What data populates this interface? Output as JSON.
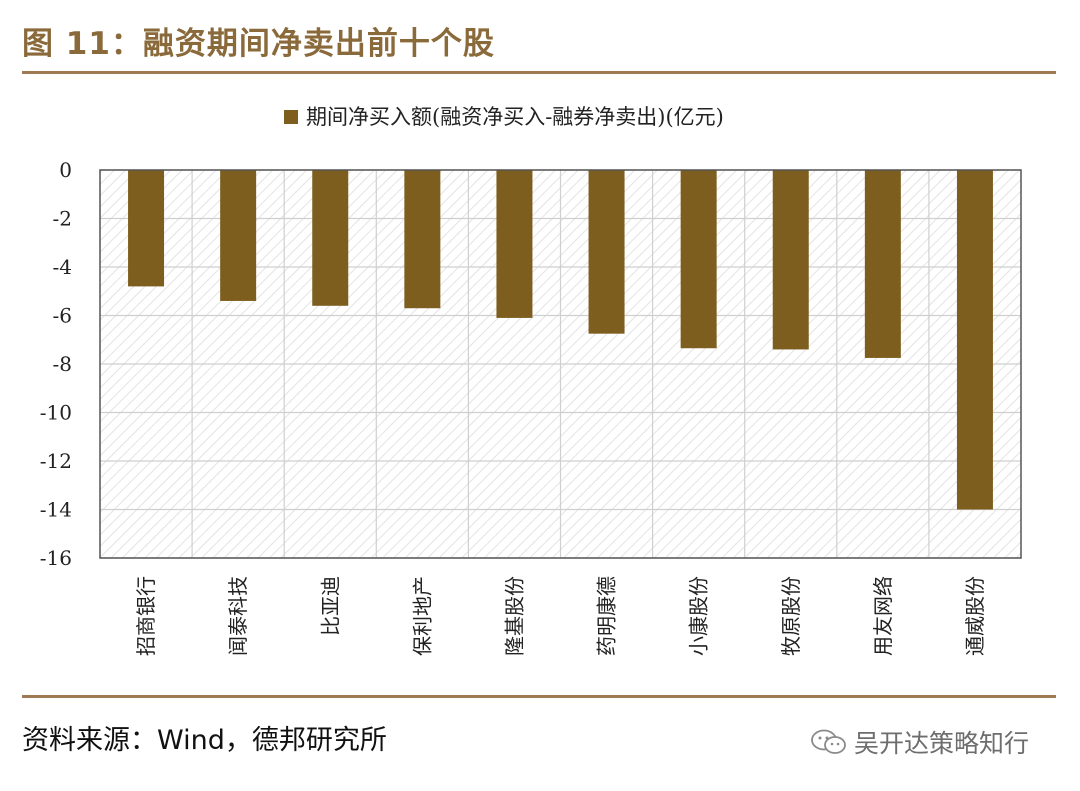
{
  "figure": {
    "title": "图 11：融资期间净卖出前十个股",
    "source": "资料来源：Wind，德邦研究所",
    "watermark": "吴开达策略知行"
  },
  "colors": {
    "bar": "#7d5e1e",
    "accent": "#a07a52",
    "title": "#8a6a3a"
  },
  "chart_data": {
    "type": "bar",
    "title": "",
    "legend": "期间净买入额(融资净买入-融券净卖出)(亿元)",
    "legend_position": "top",
    "xlabel": "",
    "ylabel": "",
    "categories": [
      "招商银行",
      "闻泰科技",
      "比亚迪",
      "保利地产",
      "隆基股份",
      "药明康德",
      "小康股份",
      "牧原股份",
      "用友网络",
      "通威股份"
    ],
    "values": [
      -4.8,
      -5.4,
      -5.6,
      -5.7,
      -6.1,
      -6.75,
      -7.35,
      -7.4,
      -7.75,
      -14.0
    ],
    "ylim": [
      -16,
      0
    ],
    "yticks": [
      "0",
      "-2",
      "-4",
      "-6",
      "-8",
      "-10",
      "-12",
      "-14",
      "-16"
    ],
    "grid": true
  }
}
